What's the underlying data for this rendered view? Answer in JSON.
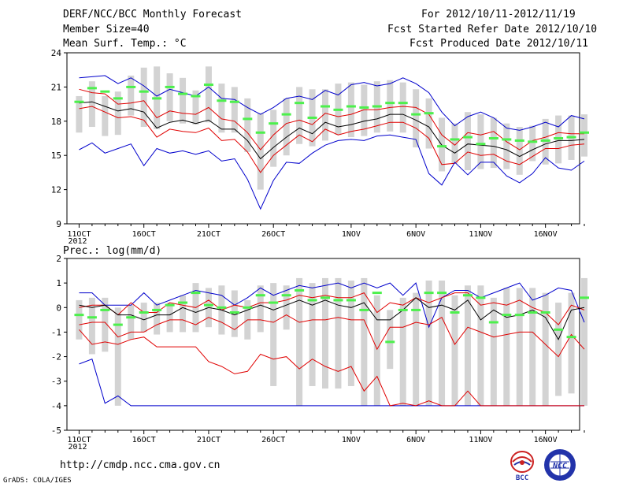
{
  "header": {
    "title": "DERF/NCC/BCC Monthly Forecast",
    "member_size": "Member Size=40",
    "top_variable": "Mean Surf. Temp.: °C",
    "for_period": "For 2012/10/11-2012/11/19",
    "fcst_started": "Fcst Started Refer Date 2012/10/10",
    "fcst_produced": "Fcst Produced Date 2012/10/11"
  },
  "footer": {
    "url": "http://cmdp.ncc.cma.gov.cn",
    "grads": "GrADS: COLA/IGES",
    "logo_left": "BCC",
    "logo_right": "NCC"
  },
  "colors": {
    "ensemble_mean": "#000000",
    "spread": "#e00000",
    "extreme": "#0000cc",
    "box": "#d3d3d3",
    "observation_mark": "#4cf04c"
  },
  "chart_data": [
    {
      "type": "line",
      "title": "Mean Surf. Temp.: °C",
      "x": [
        11,
        12,
        13,
        14,
        15,
        16,
        17,
        18,
        19,
        20,
        21,
        22,
        23,
        24,
        25,
        26,
        27,
        28,
        29,
        30,
        31,
        32,
        33,
        34,
        35,
        36,
        37,
        38,
        39,
        40,
        41,
        42,
        43,
        44,
        45,
        46,
        47,
        48,
        49,
        50
      ],
      "xtick_labels": [
        {
          "x": 11,
          "label": "11OCT"
        },
        {
          "x": 16,
          "label": "16OCT"
        },
        {
          "x": 21,
          "label": "21OCT"
        },
        {
          "x": 26,
          "label": "26OCT"
        },
        {
          "x": 32,
          "label": "1NOV"
        },
        {
          "x": 37,
          "label": "6NOV"
        },
        {
          "x": 42,
          "label": "11NOV"
        },
        {
          "x": 47,
          "label": "16NOV"
        }
      ],
      "year_label": "2012",
      "ylim": [
        9,
        24
      ],
      "yticks": [
        9,
        12,
        15,
        18,
        21,
        24
      ],
      "series": [
        {
          "name": "max",
          "values": [
            21.8,
            21.9,
            22.0,
            21.3,
            21.8,
            21.1,
            20.2,
            20.8,
            20.5,
            20.2,
            21.0,
            20.0,
            19.9,
            19.2,
            18.6,
            19.2,
            20.0,
            20.2,
            19.9,
            20.7,
            20.3,
            21.2,
            21.4,
            21.1,
            21.3,
            21.8,
            21.3,
            20.5,
            18.8,
            17.6,
            18.4,
            18.8,
            18.3,
            17.4,
            17.2,
            17.5,
            17.9,
            17.5,
            18.5,
            18.2
          ]
        },
        {
          "name": "upper",
          "values": [
            20.8,
            20.5,
            20.4,
            19.5,
            19.6,
            19.8,
            18.3,
            18.9,
            18.7,
            18.6,
            19.2,
            18.2,
            18.0,
            17.0,
            15.5,
            16.8,
            17.8,
            18.1,
            17.7,
            18.7,
            18.4,
            18.6,
            19.0,
            19.0,
            19.2,
            19.3,
            19.2,
            18.6,
            16.8,
            15.9,
            17.0,
            16.8,
            17.1,
            16.2,
            15.5,
            16.3,
            16.6,
            17.0,
            16.9,
            16.9
          ]
        },
        {
          "name": "mean",
          "values": [
            19.6,
            19.7,
            19.3,
            18.9,
            19.1,
            18.8,
            17.4,
            17.9,
            18.1,
            17.8,
            18.1,
            17.3,
            17.3,
            16.3,
            14.7,
            15.7,
            16.6,
            17.4,
            16.9,
            17.9,
            17.5,
            17.7,
            18.0,
            18.2,
            18.6,
            18.6,
            18.1,
            17.5,
            15.9,
            15.2,
            16.0,
            15.9,
            15.8,
            15.5,
            14.9,
            15.5,
            16.0,
            16.3,
            16.3,
            16.4
          ]
        },
        {
          "name": "lower",
          "values": [
            19.1,
            19.3,
            18.8,
            18.3,
            18.4,
            18.1,
            16.6,
            17.3,
            17.1,
            17.0,
            17.4,
            16.3,
            16.4,
            15.3,
            13.5,
            15.0,
            15.9,
            16.8,
            16.2,
            17.3,
            16.8,
            17.1,
            17.3,
            17.6,
            17.9,
            17.9,
            17.4,
            16.5,
            14.2,
            14.3,
            15.3,
            15.0,
            15.1,
            14.5,
            14.2,
            14.9,
            15.6,
            15.6,
            15.9,
            16.0
          ]
        },
        {
          "name": "min",
          "values": [
            15.5,
            16.1,
            15.2,
            15.6,
            16.0,
            14.1,
            15.6,
            15.2,
            15.4,
            15.1,
            15.4,
            14.5,
            14.7,
            12.9,
            10.3,
            12.8,
            14.4,
            14.3,
            15.2,
            15.9,
            16.3,
            16.4,
            16.3,
            16.7,
            16.8,
            16.6,
            16.4,
            13.4,
            12.4,
            14.4,
            13.3,
            14.4,
            14.4,
            13.2,
            12.6,
            13.4,
            14.8,
            13.9,
            13.7,
            14.5
          ]
        },
        {
          "name": "obs",
          "values": [
            19.7,
            20.9,
            20.6,
            20.0,
            21.0,
            20.6,
            20.0,
            21.0,
            20.4,
            20.2,
            21.2,
            19.8,
            19.7,
            18.2,
            17.0,
            17.8,
            18.6,
            19.6,
            18.3,
            19.3,
            19.0,
            19.3,
            19.2,
            19.3,
            19.6,
            19.6,
            18.6,
            18.7,
            15.8,
            16.4,
            16.6,
            16.0,
            16.5,
            16.4,
            16.3,
            16.2,
            16.3,
            16.5,
            16.6,
            17.0
          ]
        }
      ],
      "boxes": [
        [
          17,
          20.2
        ],
        [
          17.5,
          21.5
        ],
        [
          16.7,
          20.2
        ],
        [
          16.8,
          20.6
        ],
        [
          18.5,
          22.0
        ],
        [
          17.5,
          22.7
        ],
        [
          17.3,
          22.8
        ],
        [
          18.0,
          22.2
        ],
        [
          17.8,
          21.8
        ],
        [
          17.7,
          20.7
        ],
        [
          17.9,
          22.8
        ],
        [
          17.0,
          21.3
        ],
        [
          17.0,
          21.0
        ],
        [
          15.3,
          20.0
        ],
        [
          12.0,
          18.7
        ],
        [
          14.0,
          19.0
        ],
        [
          15.0,
          20.0
        ],
        [
          16.0,
          21.0
        ],
        [
          15.8,
          20.8
        ],
        [
          16.3,
          20.8
        ],
        [
          16.8,
          21.3
        ],
        [
          16.6,
          21.4
        ],
        [
          16.7,
          21.2
        ],
        [
          17.0,
          21.5
        ],
        [
          17.1,
          21.6
        ],
        [
          17.0,
          21.4
        ],
        [
          15.7,
          20.8
        ],
        [
          15.6,
          20.0
        ],
        [
          13.6,
          18.3
        ],
        [
          14.3,
          17.8
        ],
        [
          13.7,
          18.8
        ],
        [
          13.8,
          18.6
        ],
        [
          13.9,
          18.3
        ],
        [
          13.8,
          17.8
        ],
        [
          13.3,
          17.5
        ],
        [
          14.5,
          17.6
        ],
        [
          14.2,
          18.2
        ],
        [
          14.3,
          18.5
        ],
        [
          14.6,
          18.5
        ],
        [
          14.9,
          18.6
        ]
      ]
    },
    {
      "type": "line",
      "title": "Prec.: log(mm/d)",
      "x": [
        11,
        12,
        13,
        14,
        15,
        16,
        17,
        18,
        19,
        20,
        21,
        22,
        23,
        24,
        25,
        26,
        27,
        28,
        29,
        30,
        31,
        32,
        33,
        34,
        35,
        36,
        37,
        38,
        39,
        40,
        41,
        42,
        43,
        44,
        45,
        46,
        47,
        48,
        49,
        50
      ],
      "xtick_labels": [
        {
          "x": 11,
          "label": "11OCT"
        },
        {
          "x": 16,
          "label": "16OCT"
        },
        {
          "x": 21,
          "label": "21OCT"
        },
        {
          "x": 26,
          "label": "26OCT"
        },
        {
          "x": 32,
          "label": "1NOV"
        },
        {
          "x": 37,
          "label": "6NOV"
        },
        {
          "x": 42,
          "label": "11NOV"
        },
        {
          "x": 47,
          "label": "16NOV"
        }
      ],
      "year_label": "2012",
      "ylim": [
        -5,
        2
      ],
      "yticks": [
        -5,
        -4,
        -3,
        -2,
        -1,
        0,
        1,
        2
      ],
      "series": [
        {
          "name": "max",
          "values": [
            0.6,
            0.6,
            0.1,
            0.1,
            0.1,
            0.6,
            0.1,
            0.3,
            0.5,
            0.7,
            0.6,
            0.5,
            0.1,
            0.4,
            0.8,
            0.5,
            0.7,
            0.9,
            0.8,
            0.9,
            1.0,
            0.8,
            1.0,
            0.8,
            1.0,
            0.5,
            1.0,
            -0.8,
            0.4,
            0.7,
            0.7,
            0.4,
            0.6,
            0.8,
            1.0,
            0.3,
            0.5,
            0.8,
            0.7,
            -0.6
          ]
        },
        {
          "name": "upper",
          "values": [
            0.0,
            0.1,
            0.1,
            -0.3,
            0.2,
            -0.2,
            -0.2,
            0.2,
            0.1,
            0.0,
            0.3,
            -0.1,
            0.1,
            0.0,
            0.2,
            0.2,
            0.3,
            0.5,
            0.4,
            0.5,
            0.4,
            0.4,
            0.6,
            -0.2,
            0.2,
            0.1,
            0.4,
            0.2,
            0.4,
            0.6,
            0.6,
            0.1,
            0.2,
            0.1,
            0.3,
            0.0,
            -0.2,
            -0.7,
            0.1,
            -0.1
          ]
        },
        {
          "name": "mean",
          "values": [
            0.1,
            0.0,
            0.1,
            -0.3,
            -0.3,
            -0.5,
            -0.3,
            -0.3,
            0.0,
            -0.2,
            0.0,
            -0.1,
            -0.3,
            -0.1,
            0.1,
            -0.1,
            0.1,
            0.3,
            0.1,
            0.3,
            0.1,
            0.0,
            0.2,
            -0.5,
            -0.5,
            -0.1,
            0.4,
            0.0,
            0.1,
            -0.1,
            0.3,
            -0.5,
            -0.1,
            -0.4,
            -0.3,
            -0.1,
            -0.4,
            -1.3,
            -0.1,
            0.0
          ]
        },
        {
          "name": "lower",
          "values": [
            -0.7,
            -0.6,
            -0.6,
            -1.2,
            -1.0,
            -1.0,
            -0.7,
            -0.5,
            -0.5,
            -0.7,
            -0.4,
            -0.6,
            -0.9,
            -0.5,
            -0.5,
            -0.6,
            -0.3,
            -0.6,
            -0.5,
            -0.5,
            -0.4,
            -0.5,
            -0.5,
            -1.7,
            -0.8,
            -0.8,
            -0.6,
            -0.7,
            -0.4,
            -1.5,
            -0.8,
            -1.0,
            -1.2,
            -1.1,
            -1.0,
            -1.0,
            -1.5,
            -2.0,
            -1.1,
            -1.7
          ]
        },
        {
          "name": "min",
          "values": [
            -2.3,
            -2.1,
            -3.9,
            -3.6,
            -4.0,
            -4.0,
            -4.0,
            -4.0,
            -4.0,
            -4.0,
            -4.0,
            -4.0,
            -4.0,
            -4.0,
            -4.0,
            -4.0,
            -4.0,
            -4.0,
            -4.0,
            -4.0,
            -4.0,
            -4.0,
            -4.0,
            -4.0,
            -4.0,
            -4.0,
            -4.0,
            -4.0,
            -4.0,
            -4.0,
            -4.0,
            -4.0,
            -4.0,
            -4.0,
            -4.0,
            -4.0,
            -4.0,
            -4.0,
            -4.0,
            -4.0
          ]
        },
        {
          "name": "min2",
          "values": [
            -0.9,
            -1.5,
            -1.4,
            -1.5,
            -1.3,
            -1.2,
            -1.6,
            -1.6,
            -1.6,
            -1.6,
            -2.2,
            -2.4,
            -2.7,
            -2.6,
            -1.9,
            -2.1,
            -2.0,
            -2.5,
            -2.1,
            -2.4,
            -2.6,
            -2.4,
            -3.4,
            -2.8,
            -4.0,
            -3.9,
            -4.0,
            -3.8,
            -4.0,
            -4.0,
            -3.4,
            -4.0,
            -4.0,
            -4.0,
            -4.0,
            -4.0,
            -4.0,
            -4.0,
            -4.0,
            -4.0
          ]
        },
        {
          "name": "obs",
          "values": [
            -0.3,
            -0.4,
            -0.1,
            -0.7,
            -0.4,
            -0.2,
            -0.1,
            0.1,
            0.2,
            0.6,
            0.1,
            0.0,
            -0.2,
            0.0,
            0.5,
            0.2,
            0.5,
            0.7,
            0.3,
            0.4,
            0.3,
            0.3,
            -0.1,
            0.6,
            -1.4,
            -0.1,
            -0.1,
            0.6,
            0.6,
            -0.2,
            0.5,
            0.4,
            -0.6,
            -0.3,
            -0.3,
            -0.2,
            -0.2,
            -0.9,
            -1.2,
            0.4
          ]
        }
      ],
      "boxes": [
        [
          -1.3,
          0.3
        ],
        [
          -1.9,
          0.4
        ],
        [
          -1.8,
          0.4
        ],
        [
          -4.0,
          0.0
        ],
        [
          -1.3,
          0.1
        ],
        [
          -1.0,
          0.2
        ],
        [
          -1.1,
          0.2
        ],
        [
          -1.0,
          0.2
        ],
        [
          -1.0,
          0.5
        ],
        [
          -1.0,
          1.0
        ],
        [
          -0.8,
          0.8
        ],
        [
          -1.1,
          0.9
        ],
        [
          -1.2,
          0.7
        ],
        [
          -1.3,
          0.3
        ],
        [
          -1.0,
          0.9
        ],
        [
          -3.2,
          1.0
        ],
        [
          -0.9,
          0.9
        ],
        [
          -4.0,
          1.2
        ],
        [
          -3.2,
          1.0
        ],
        [
          -3.3,
          1.2
        ],
        [
          -3.3,
          1.2
        ],
        [
          -3.2,
          1.1
        ],
        [
          -4.0,
          1.2
        ],
        [
          -4.0,
          0.5
        ],
        [
          -2.5,
          -0.1
        ],
        [
          -4.0,
          0.4
        ],
        [
          -4.0,
          0.6
        ],
        [
          -4.0,
          1.1
        ],
        [
          -4.0,
          1.1
        ],
        [
          -4.0,
          0.5
        ],
        [
          -4.0,
          0.9
        ],
        [
          -4.0,
          0.9
        ],
        [
          -4.0,
          0.4
        ],
        [
          -4.0,
          0.8
        ],
        [
          -4.0,
          0.8
        ],
        [
          -4.0,
          0.8
        ],
        [
          -4.0,
          0.6
        ],
        [
          -3.6,
          0.2
        ],
        [
          -3.5,
          0.6
        ],
        [
          -4.0,
          1.2
        ]
      ]
    }
  ]
}
